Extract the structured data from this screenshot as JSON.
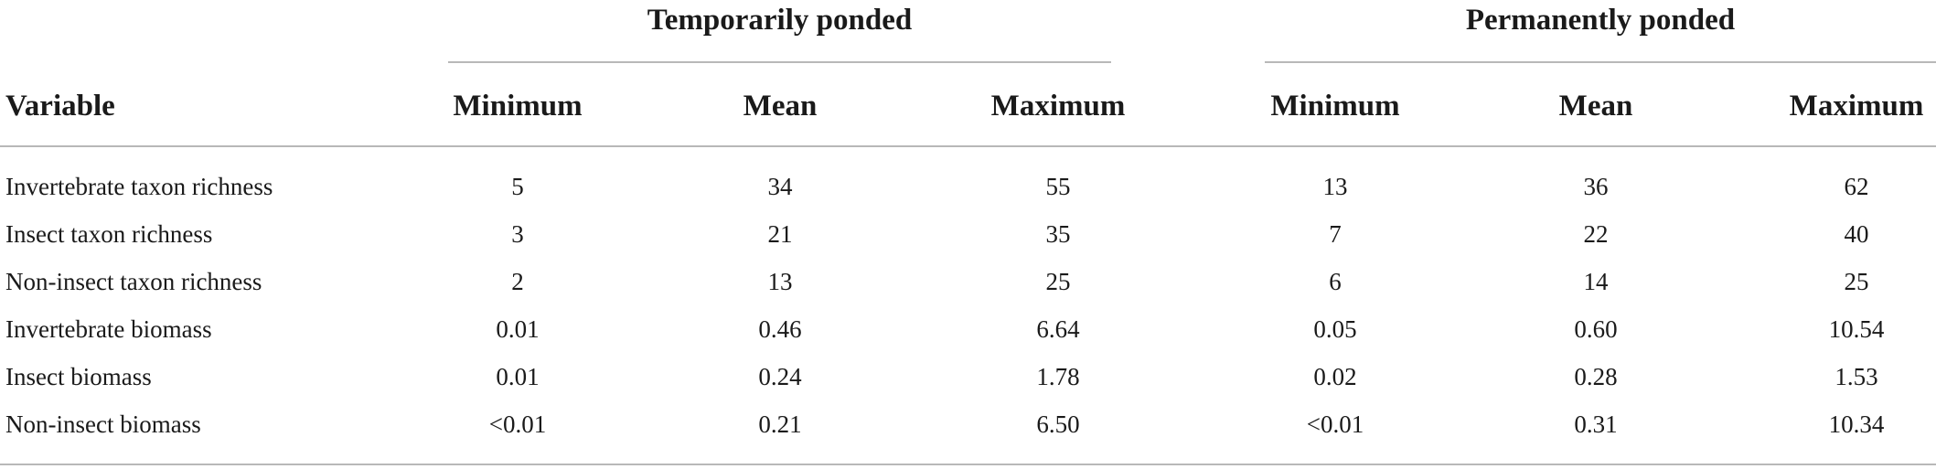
{
  "table": {
    "groups": [
      {
        "label": "Temporarily ponded"
      },
      {
        "label": "Permanently ponded"
      }
    ],
    "columns": [
      "Variable",
      "Minimum",
      "Mean",
      "Maximum",
      "Minimum",
      "Mean",
      "Maximum"
    ],
    "rows": [
      {
        "cells": [
          "Invertebrate taxon richness",
          "5",
          "34",
          "55",
          "13",
          "36",
          "62"
        ]
      },
      {
        "cells": [
          "Insect taxon richness",
          "3",
          "21",
          "35",
          "7",
          "22",
          "40"
        ]
      },
      {
        "cells": [
          "Non-insect taxon richness",
          "2",
          "13",
          "25",
          "6",
          "14",
          "25"
        ]
      },
      {
        "cells": [
          "Invertebrate biomass",
          "0.01",
          "0.46",
          "6.64",
          "0.05",
          "0.60",
          "10.54"
        ]
      },
      {
        "cells": [
          "Insect biomass",
          "0.01",
          "0.24",
          "1.78",
          "0.02",
          "0.28",
          "1.53"
        ]
      },
      {
        "cells": [
          "Non-insect biomass",
          "<0.01",
          "0.21",
          "6.50",
          "<0.01",
          "0.31",
          "10.34"
        ]
      }
    ]
  }
}
